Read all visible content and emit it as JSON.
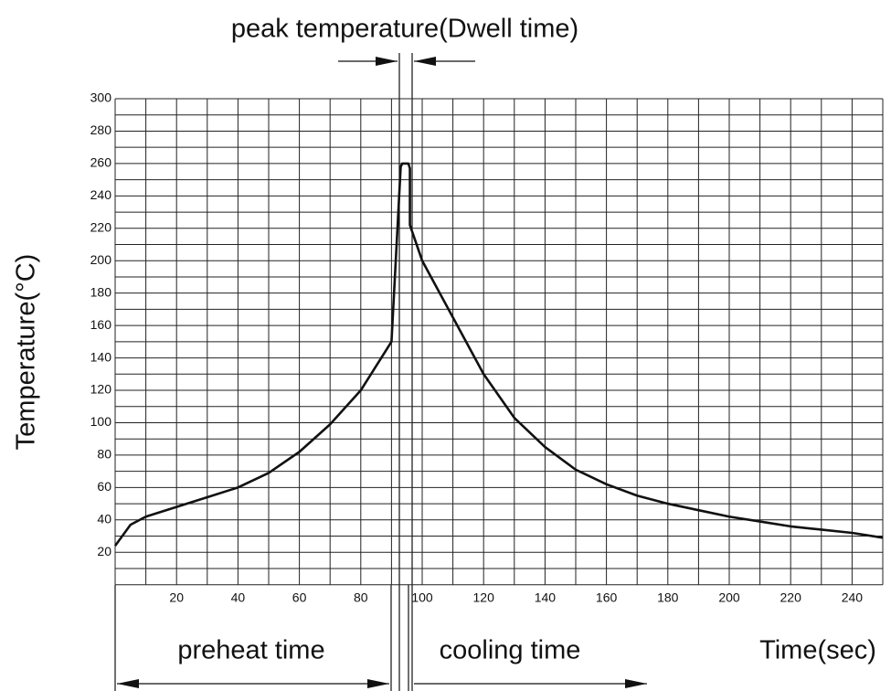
{
  "chart_data": {
    "type": "line",
    "title": "peak temperature(Dwell time)",
    "y_label": "Temperature(°C)",
    "x_label": "Time(sec)",
    "annotations": [
      "preheat time",
      "cooling time"
    ],
    "x": [
      0,
      5,
      10,
      20,
      30,
      40,
      50,
      60,
      70,
      80,
      90,
      93,
      93.5,
      95.5,
      96,
      96,
      100,
      110,
      120,
      130,
      140,
      150,
      160,
      170,
      180,
      190,
      200,
      210,
      220,
      230,
      240,
      250
    ],
    "series": [
      {
        "color": "#111111",
        "values": [
          24,
          37,
          42,
          48,
          54,
          60,
          69,
          82,
          99,
          120,
          150,
          258,
          260,
          260,
          257,
          222,
          200,
          165,
          130,
          103,
          85,
          71,
          62,
          55,
          50,
          46,
          42,
          39,
          36,
          34,
          32,
          29
        ]
      }
    ],
    "xlim": [
      0,
      250
    ],
    "ylim": [
      0,
      300
    ],
    "xticks": [
      20,
      40,
      60,
      80,
      100,
      120,
      140,
      160,
      180,
      200,
      220,
      240
    ],
    "yticks": [
      20,
      40,
      60,
      80,
      100,
      120,
      140,
      160,
      180,
      200,
      220,
      240,
      260,
      280,
      300
    ],
    "xgrid": [
      0,
      10,
      20,
      30,
      40,
      50,
      60,
      70,
      80,
      90,
      100,
      110,
      120,
      130,
      140,
      150,
      160,
      170,
      180,
      190,
      200,
      210,
      220,
      230,
      240,
      250
    ],
    "ygrid": [
      0,
      10,
      20,
      30,
      40,
      50,
      60,
      70,
      80,
      90,
      100,
      110,
      120,
      130,
      140,
      150,
      160,
      170,
      180,
      190,
      200,
      210,
      220,
      230,
      240,
      250,
      260,
      270,
      280,
      290,
      300
    ],
    "grid": true
  }
}
